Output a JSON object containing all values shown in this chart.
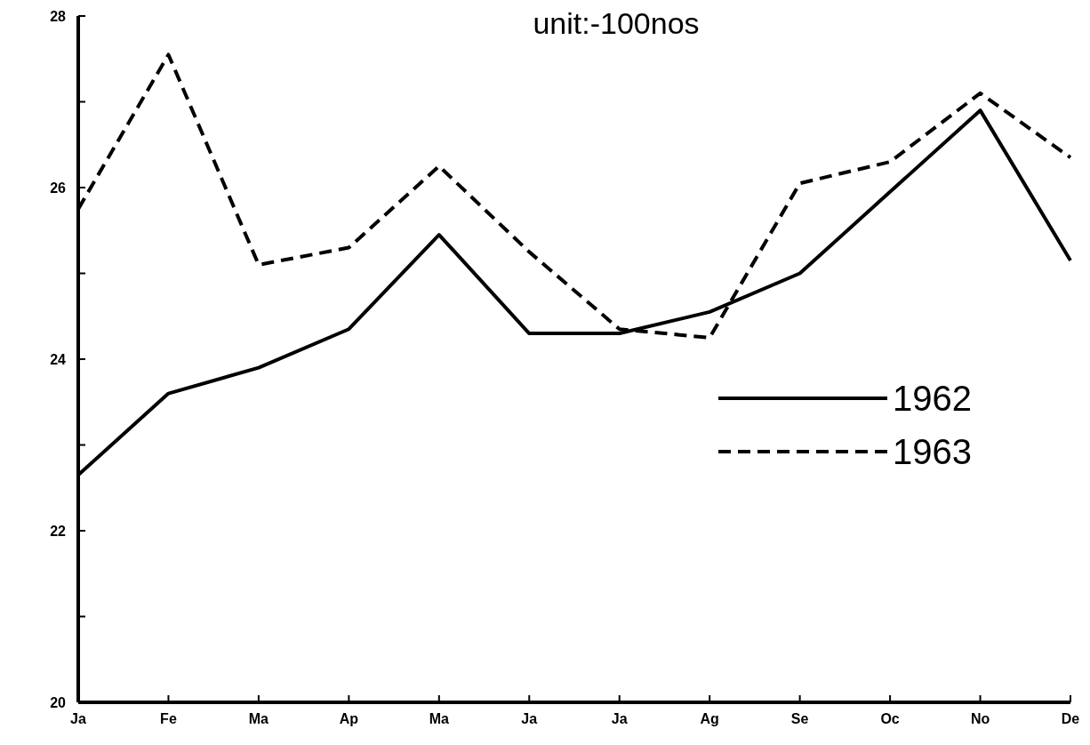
{
  "chart_data": {
    "type": "line",
    "title": "unit:-100nos",
    "categories": [
      "Ja",
      "Fe",
      "Ma",
      "Ap",
      "Ma",
      "Ja",
      "Ja",
      "Ag",
      "Se",
      "Oc",
      "No",
      "De"
    ],
    "series": [
      {
        "name": "1962",
        "color": "#000000",
        "line_style": "solid",
        "values": [
          22.65,
          23.6,
          23.9,
          24.35,
          25.45,
          24.3,
          24.3,
          24.55,
          25.0,
          25.95,
          26.9,
          25.15
        ]
      },
      {
        "name": "1963",
        "color": "#000000",
        "line_style": "dashed",
        "values": [
          25.75,
          27.55,
          25.1,
          25.3,
          26.25,
          25.25,
          24.35,
          24.25,
          26.05,
          26.3,
          27.1,
          26.35
        ]
      }
    ],
    "ylim": [
      20,
      28
    ],
    "yticks": [
      20,
      {
        "value": 21,
        "label": null
      },
      22,
      {
        "value": 23,
        "label": null
      },
      24,
      {
        "value": 25,
        "label": null
      },
      26,
      {
        "value": 27,
        "label": null
      },
      28
    ],
    "legend": "right",
    "grid": false,
    "marker": "none"
  }
}
